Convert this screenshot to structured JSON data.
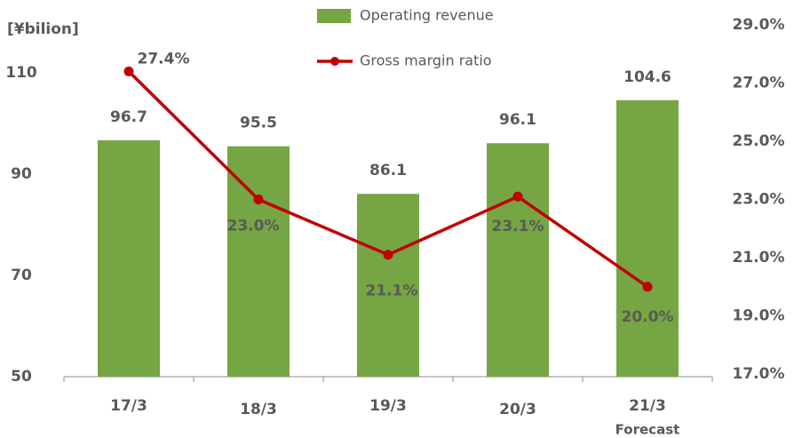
{
  "chart_data": {
    "type": "bar_line",
    "y_axis_label": "[¥bilion]",
    "categories": [
      "17/3",
      "18/3",
      "19/3",
      "20/3",
      "21/3"
    ],
    "annotation": "Forecast",
    "ylim": [
      50,
      110
    ],
    "yticks": [
      50,
      70,
      90,
      110
    ],
    "y2lim": [
      17,
      29
    ],
    "y2ticks": [
      {
        "value": 17,
        "label": "17.0%"
      },
      {
        "value": 19,
        "label": "19.0%"
      },
      {
        "value": 21,
        "label": "21.0%"
      },
      {
        "value": 23,
        "label": "23.0%"
      },
      {
        "value": 25,
        "label": "25.0%"
      },
      {
        "value": 27,
        "label": "27.0%"
      },
      {
        "value": 29,
        "label": "29.0%"
      }
    ],
    "series": [
      {
        "name": "Operating revenue",
        "type": "bar",
        "color": "#76a544",
        "values": [
          96.7,
          95.5,
          86.1,
          96.1,
          104.6
        ]
      },
      {
        "name": "Gross margin ratio",
        "type": "line",
        "axis": "y2",
        "color": "#c00000",
        "values": [
          27.4,
          23.0,
          21.1,
          23.1,
          20.0
        ],
        "value_labels": [
          "27.4%",
          "23.0%",
          "21.1%",
          "23.1%",
          "20.0%"
        ]
      }
    ]
  }
}
